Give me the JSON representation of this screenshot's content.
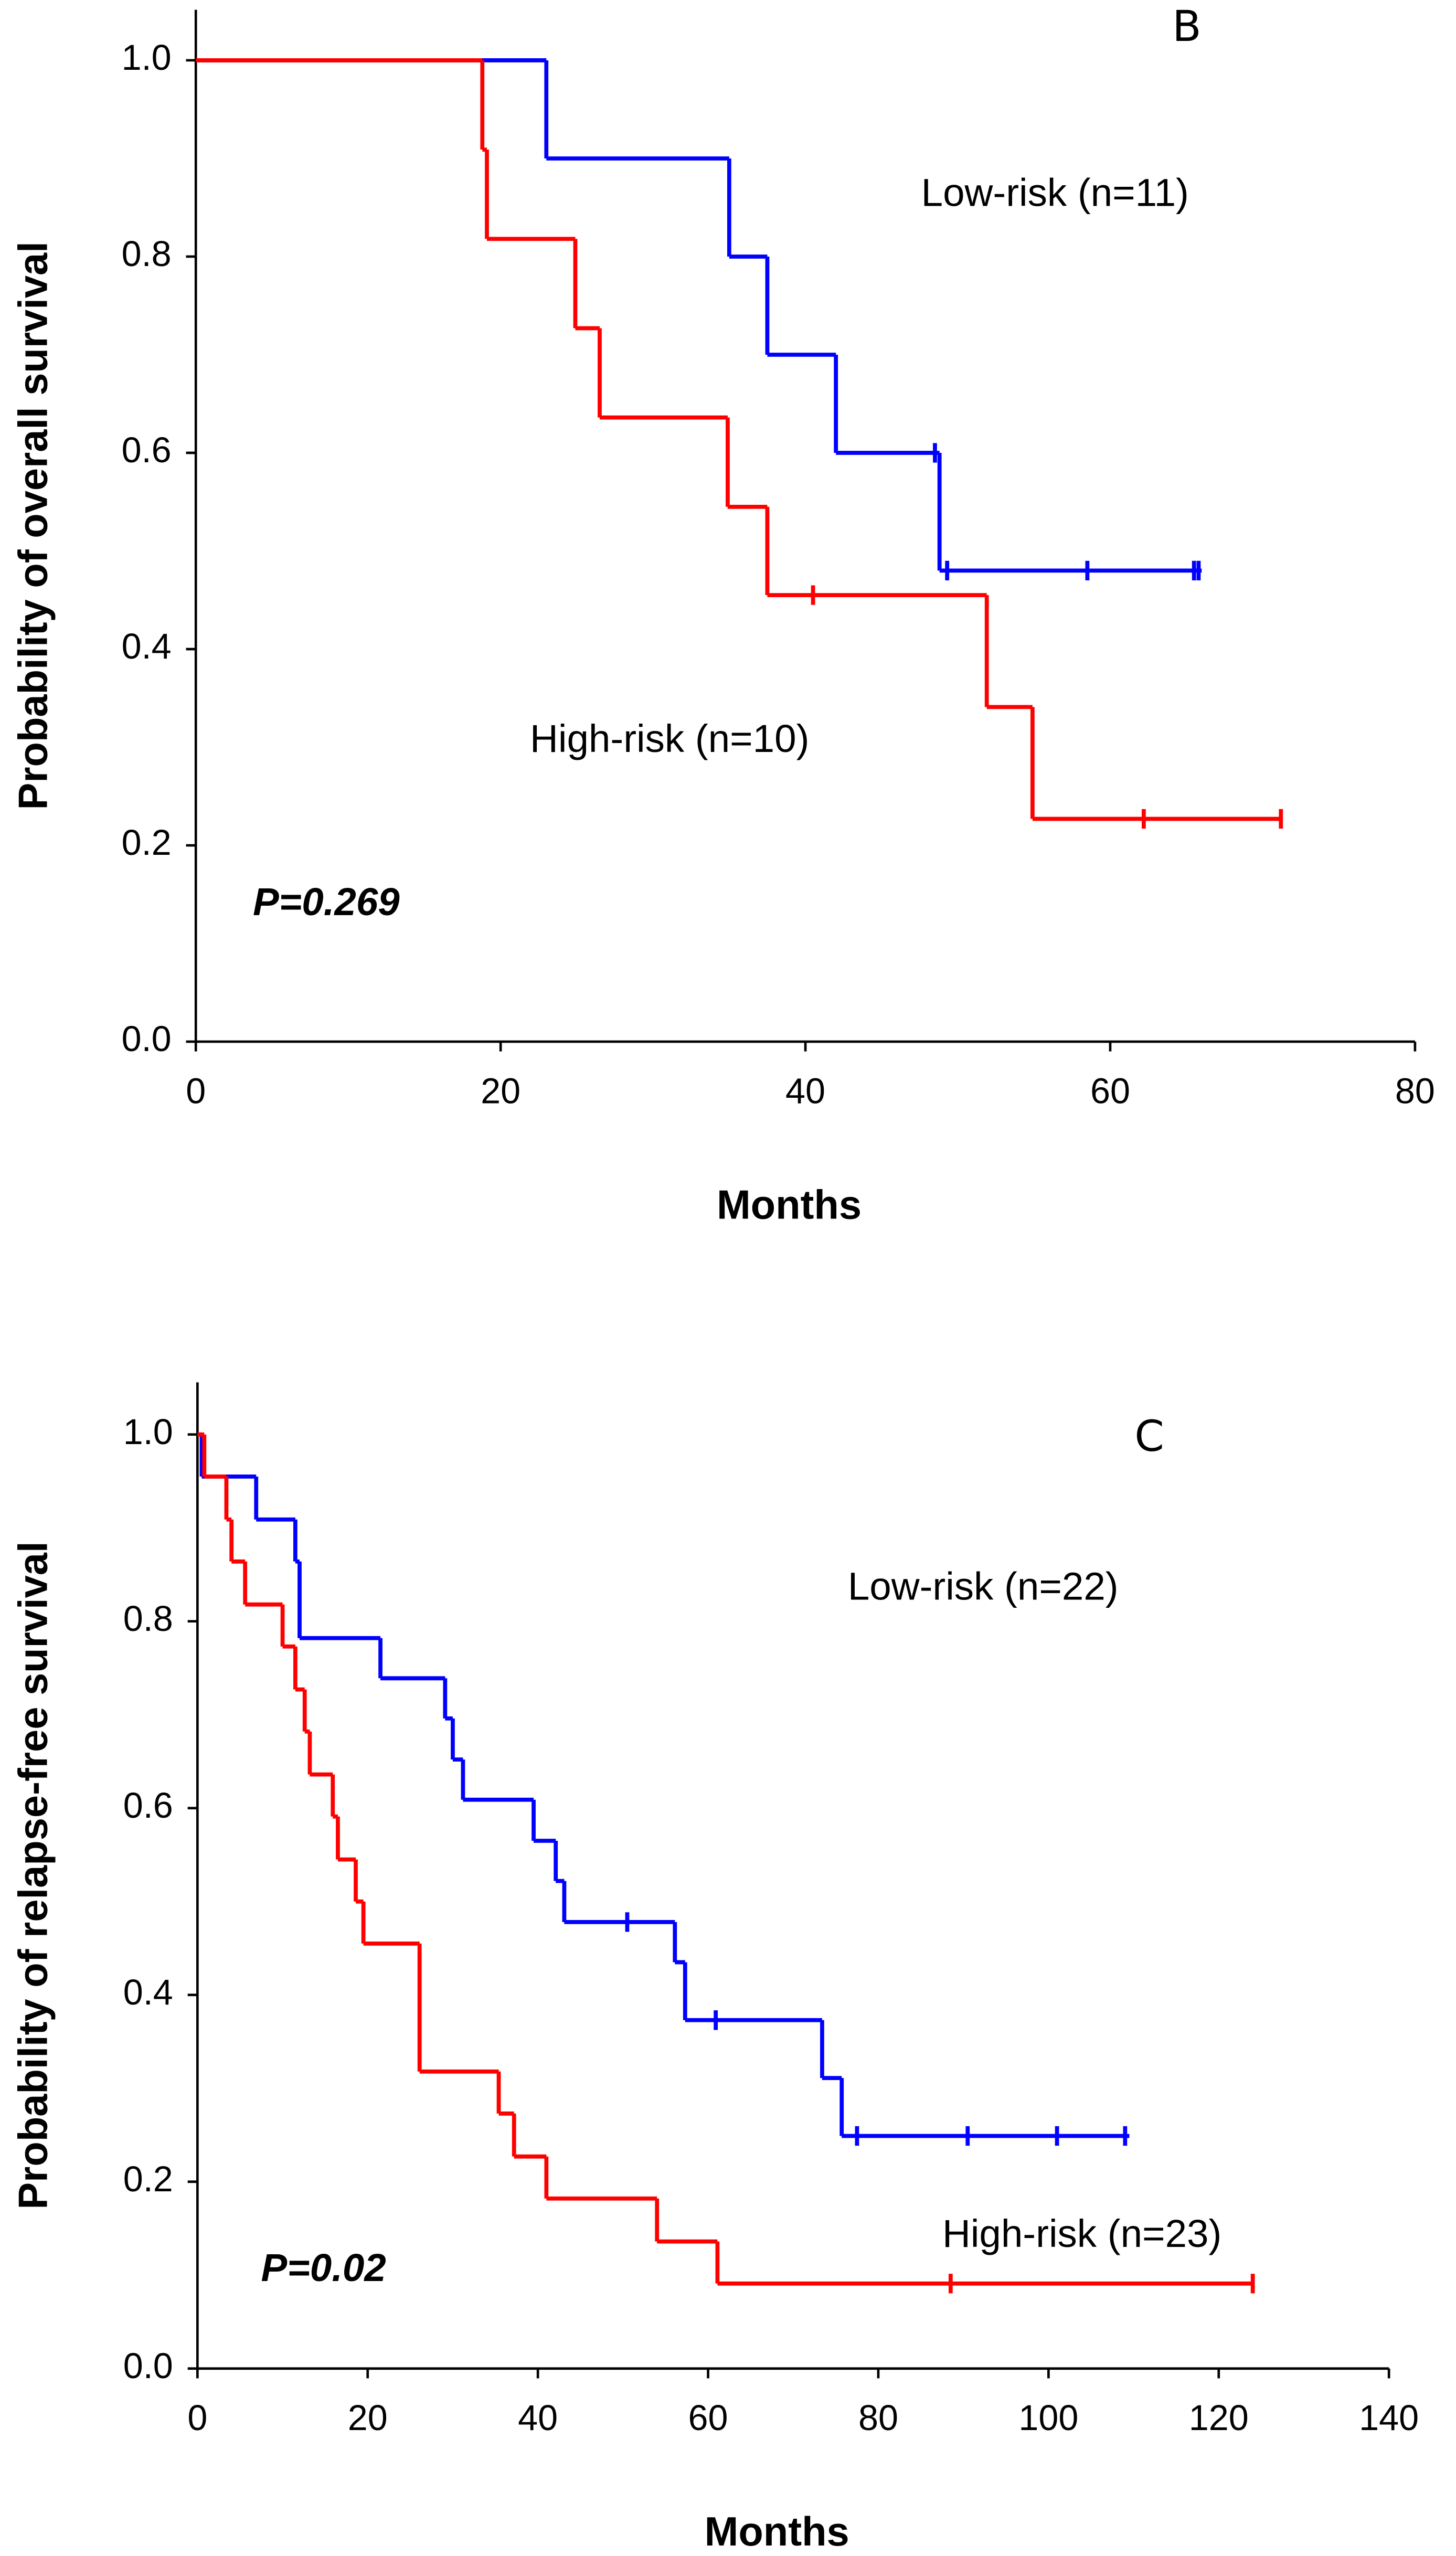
{
  "chart_data": [
    {
      "type": "step",
      "panel_label": "B",
      "xlabel": "Months",
      "ylabel": "Probability of overall survival",
      "annotation": "P=0.269",
      "xlim": [
        0,
        80
      ],
      "xticks": [
        0,
        20,
        40,
        60,
        80
      ],
      "ylim": [
        0,
        1
      ],
      "yticks": [
        {
          "value": 0,
          "label": "0.0"
        },
        {
          "value": 0.2,
          "label": "0.2"
        },
        {
          "value": 0.4,
          "label": "0.4"
        },
        {
          "value": 0.6,
          "label": "0.6"
        },
        {
          "value": 0.8,
          "label": "0.8"
        },
        {
          "value": 1,
          "label": "1.0"
        }
      ],
      "series": [
        {
          "name": "Low-risk (n=11)",
          "color": "#0000ff",
          "x": [
            0,
            23,
            35,
            37.5,
            42,
            48.8,
            66
          ],
          "values": [
            1,
            0.9,
            0.8,
            0.7,
            0.6,
            0.48,
            0.48
          ],
          "censor_x": [
            48.5,
            49.3,
            58.5,
            65.5,
            65.8
          ],
          "censor_values": [
            0.6,
            0.48,
            0.48,
            0.48,
            0.48
          ]
        },
        {
          "name": "High-risk (n=10)",
          "color": "#ff0000",
          "x": [
            0,
            18.8,
            19.1,
            24.9,
            26.5,
            34.9,
            37.5,
            51.9,
            54.9,
            71.2
          ],
          "values": [
            1,
            0.909,
            0.818,
            0.727,
            0.636,
            0.545,
            0.455,
            0.341,
            0.227,
            0.227
          ],
          "censor_x": [
            40.5,
            62.2,
            71.2
          ],
          "censor_values": [
            0.455,
            0.227,
            0.227
          ]
        }
      ]
    },
    {
      "type": "step",
      "panel_label": "C",
      "xlabel": "Months",
      "ylabel": "Probability of relapse-free survival",
      "annotation": "P=0.02",
      "xlim": [
        0,
        140
      ],
      "xticks": [
        0,
        20,
        40,
        60,
        80,
        100,
        120,
        140
      ],
      "ylim": [
        0,
        1
      ],
      "yticks": [
        {
          "value": 0,
          "label": "0.0"
        },
        {
          "value": 0.2,
          "label": "0.2"
        },
        {
          "value": 0.4,
          "label": "0.4"
        },
        {
          "value": 0.6,
          "label": "0.6"
        },
        {
          "value": 0.8,
          "label": "0.8"
        },
        {
          "value": 1,
          "label": "1.0"
        }
      ],
      "series": [
        {
          "name": "Low-risk (n=22)",
          "color": "#0000ff",
          "x": [
            0,
            0.5,
            6.9,
            11.5,
            12,
            21.5,
            29.1,
            30,
            31.2,
            39.5,
            42.1,
            43.1,
            56.1,
            57.3,
            73.4,
            75.7,
            109.5
          ],
          "values": [
            1,
            0.955,
            0.909,
            0.864,
            0.782,
            0.739,
            0.696,
            0.652,
            0.609,
            0.565,
            0.522,
            0.478,
            0.435,
            0.373,
            0.311,
            0.249,
            0.249
          ],
          "censor_x": [
            50.5,
            60.9,
            77.5,
            90.5,
            101,
            109
          ],
          "censor_values": [
            0.478,
            0.373,
            0.249,
            0.249,
            0.249,
            0.249
          ]
        },
        {
          "name": "High-risk (n=23)",
          "color": "#ff0000",
          "x": [
            0,
            0.8,
            3.4,
            4,
            5.6,
            10,
            11.5,
            12.6,
            13.2,
            15.9,
            16.5,
            18.6,
            19.5,
            26.1,
            35.4,
            37.2,
            41,
            54,
            61.1,
            124
          ],
          "values": [
            1,
            0.955,
            0.909,
            0.864,
            0.818,
            0.773,
            0.727,
            0.682,
            0.636,
            0.591,
            0.545,
            0.5,
            0.455,
            0.318,
            0.273,
            0.227,
            0.182,
            0.136,
            0.091,
            0.091
          ],
          "censor_x": [
            88.5,
            124
          ],
          "censor_values": [
            0.091,
            0.091
          ]
        }
      ]
    }
  ]
}
